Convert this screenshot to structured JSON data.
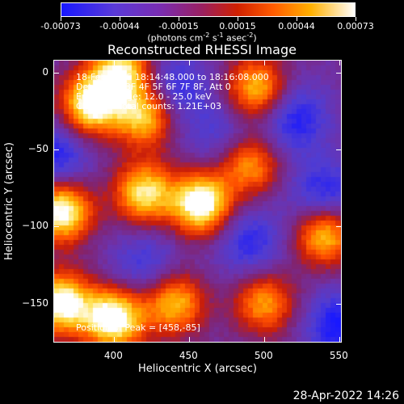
{
  "chart_data": {
    "type": "heatmap",
    "title": "Reconstructed RHESSI Image",
    "xlabel": "Heliocentric X (arcsec)",
    "ylabel": "Heliocentric Y (arcsec)",
    "xlim": [
      360,
      552
    ],
    "ylim": [
      -176,
      8
    ],
    "xticks": [
      "400",
      "450",
      "500",
      "550"
    ],
    "yticks": [
      "0",
      "−50",
      "−100",
      "−150"
    ],
    "colorbar": {
      "ticks": [
        "-0.00073",
        "-0.00044",
        "-0.00015",
        "0.00015",
        "0.00044",
        "0.00073"
      ],
      "unit_parts": [
        "(photons cm",
        "-2",
        " s",
        "-1",
        " asec",
        "-2",
        ")"
      ]
    },
    "annotations": [
      "18-Feb-2005 18:14:48.000 to 18:16:08.000",
      "Detectors: 3F 4F 5F 6F 7F 8F, Att 0",
      "Energy Range: 12.0 - 25.0 keV",
      "Clean      Total counts: 1.21E+03"
    ],
    "peak_label": "Position of Peak = [458,-85]",
    "peak": [
      458,
      -85
    ],
    "bright_regions": [
      {
        "x": 405,
        "y": 2,
        "level": 0.8
      },
      {
        "x": 385,
        "y": -20,
        "level": 0.95
      },
      {
        "x": 420,
        "y": -28,
        "level": 0.75
      },
      {
        "x": 495,
        "y": -10,
        "level": 0.7
      },
      {
        "x": 365,
        "y": -90,
        "level": 0.95
      },
      {
        "x": 420,
        "y": -78,
        "level": 0.8
      },
      {
        "x": 458,
        "y": -85,
        "level": 1.0
      },
      {
        "x": 490,
        "y": -60,
        "level": 0.6
      },
      {
        "x": 540,
        "y": -105,
        "level": 0.75
      },
      {
        "x": 365,
        "y": -150,
        "level": 0.95
      },
      {
        "x": 400,
        "y": -160,
        "level": 1.0
      },
      {
        "x": 440,
        "y": -150,
        "level": 0.7
      },
      {
        "x": 500,
        "y": -150,
        "level": 0.6
      }
    ],
    "dark_regions": [
      {
        "x": 440,
        "y": -10,
        "level": 0.15
      },
      {
        "x": 360,
        "y": -55,
        "level": 0.1
      },
      {
        "x": 520,
        "y": -30,
        "level": 0.1
      },
      {
        "x": 540,
        "y": -80,
        "level": 0.1
      },
      {
        "x": 420,
        "y": -125,
        "level": 0.2
      },
      {
        "x": 490,
        "y": -110,
        "level": 0.15
      },
      {
        "x": 550,
        "y": -165,
        "level": 0.05
      },
      {
        "x": 470,
        "y": -40,
        "level": 0.25
      }
    ]
  },
  "footer": {
    "timestamp": "28-Apr-2022 14:26"
  }
}
